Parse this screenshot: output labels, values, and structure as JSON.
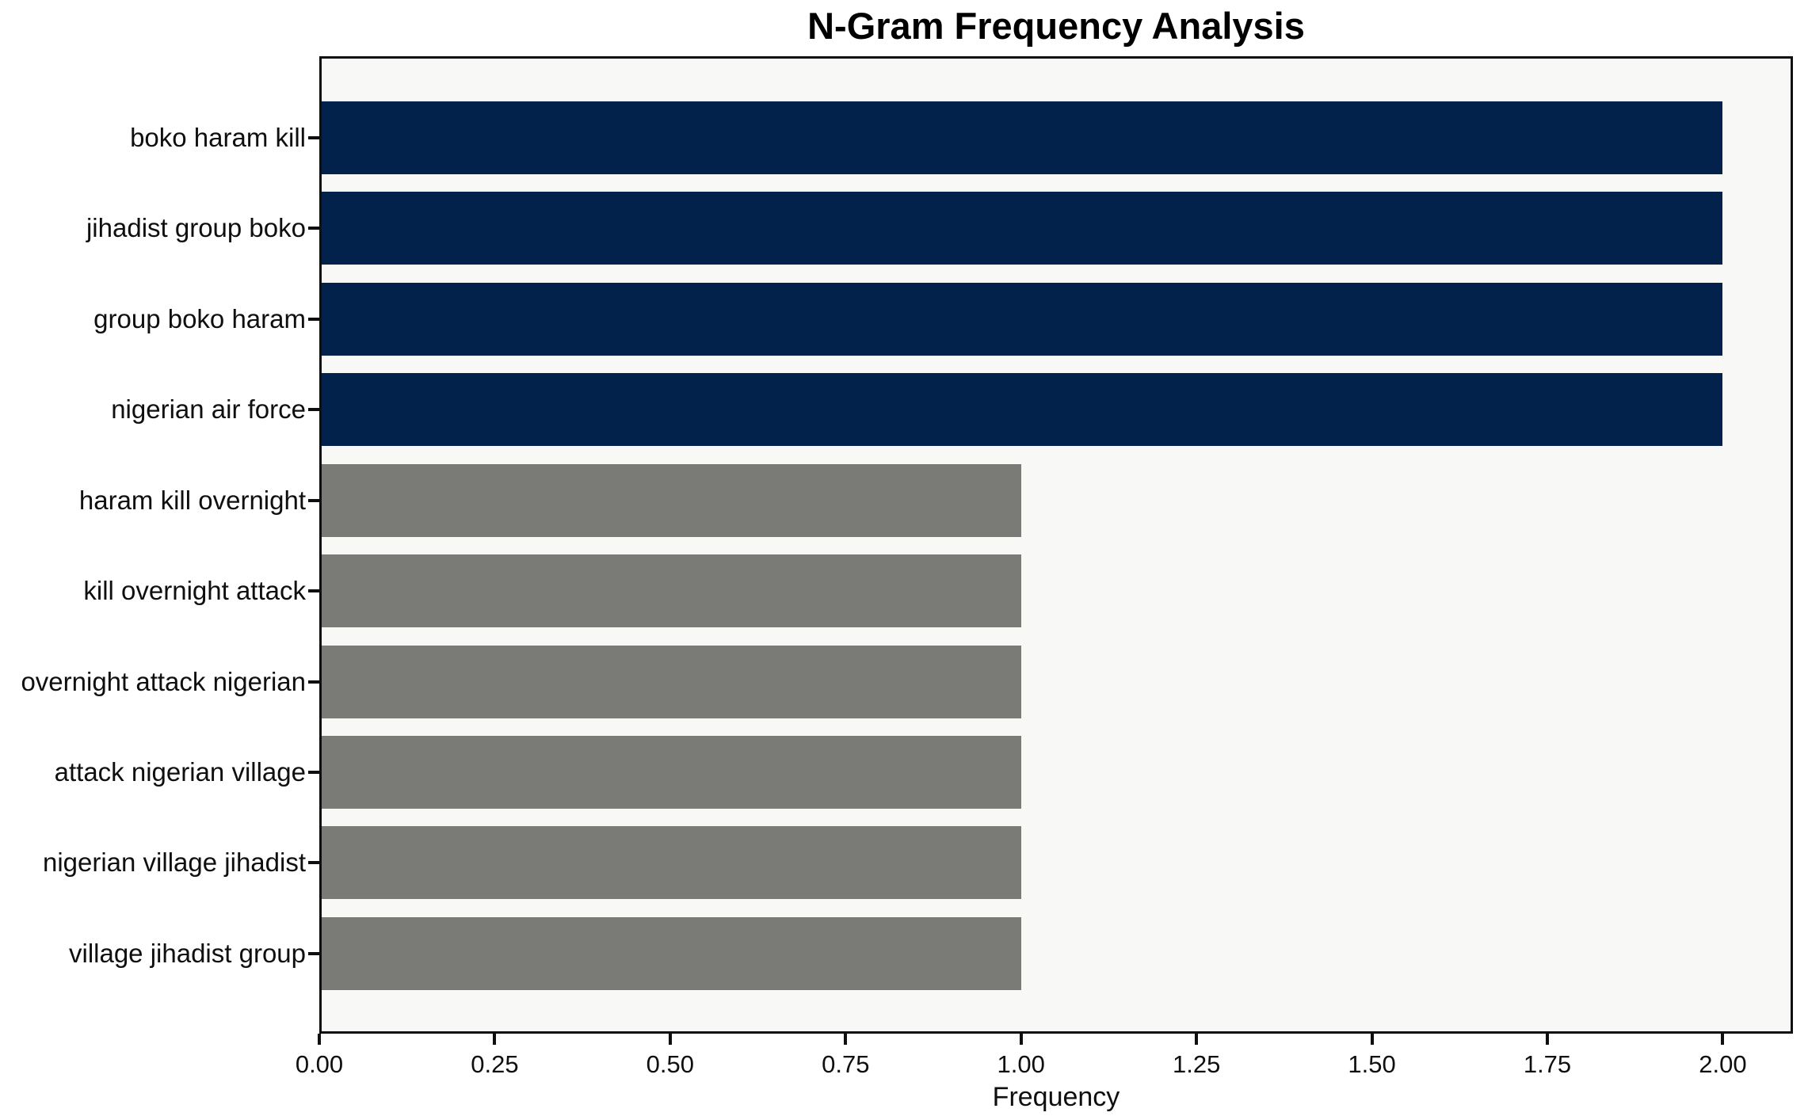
{
  "chart_data": {
    "type": "bar",
    "orientation": "horizontal",
    "title": "N-Gram Frequency Analysis",
    "xlabel": "Frequency",
    "ylabel": "",
    "categories": [
      "boko haram kill",
      "jihadist group boko",
      "group boko haram",
      "nigerian air force",
      "haram kill overnight",
      "kill overnight attack",
      "overnight attack nigerian",
      "attack nigerian village",
      "nigerian village jihadist",
      "village jihadist group"
    ],
    "values": [
      2,
      2,
      2,
      2,
      1,
      1,
      1,
      1,
      1,
      1
    ],
    "bar_colors": [
      "#02224c",
      "#02224c",
      "#02224c",
      "#02224c",
      "#7a7a77",
      "#7a7a77",
      "#7a7a77",
      "#7a7a77",
      "#7a7a77",
      "#7a7a77"
    ],
    "xlim": [
      0,
      2.1
    ],
    "xticks": [
      0,
      0.25,
      0.5,
      0.75,
      1.0,
      1.25,
      1.5,
      1.75,
      2.0
    ],
    "xtick_labels": [
      "0.00",
      "0.25",
      "0.50",
      "0.75",
      "1.00",
      "1.25",
      "1.50",
      "1.75",
      "2.00"
    ],
    "grid": false,
    "legend": false,
    "colors": {
      "high_bar": "#02224c",
      "low_bar": "#7a7a77",
      "plot_background": "#f8f8f7",
      "figure_background": "#ffffff",
      "spine": "#0f0f0f",
      "text": "#0f0f0f"
    }
  }
}
